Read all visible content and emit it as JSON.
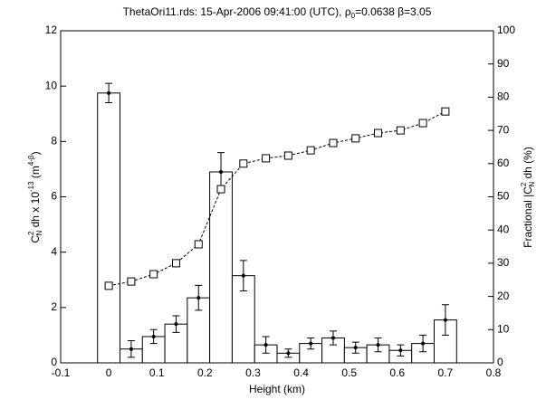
{
  "chart_data": {
    "type": "bar",
    "title": [
      "ThetaOri11.rds: 15-Apr-2006 09:41:00 (UTC), ρ",
      "0",
      "=0.0638 β=3.05"
    ],
    "x_label": "Height (km)",
    "y_label": [
      "C",
      "2",
      "N",
      " dh x 10",
      "-13",
      " (m",
      "4-β",
      ")"
    ],
    "y2_label": [
      "Fractional |C",
      "2",
      "N",
      " dh  (%)"
    ],
    "x": [
      0,
      0.0467,
      0.0933,
      0.14,
      0.1867,
      0.2333,
      0.28,
      0.3267,
      0.3733,
      0.42,
      0.4667,
      0.5133,
      0.56,
      0.6067,
      0.6533,
      0.7
    ],
    "series": [
      {
        "type": "bar",
        "color": "#000000",
        "values": [
          9.75,
          0.5,
          0.95,
          1.4,
          2.35,
          6.9,
          3.15,
          0.65,
          0.35,
          0.7,
          0.9,
          0.55,
          0.65,
          0.45,
          0.7,
          1.55
        ],
        "errors": [
          0.35,
          0.3,
          0.25,
          0.3,
          0.45,
          0.7,
          0.55,
          0.3,
          0.15,
          0.2,
          0.25,
          0.2,
          0.25,
          0.2,
          0.3,
          0.55
        ]
      },
      {
        "type": "line",
        "axis": "y2",
        "color": "#000000",
        "values": [
          23.2,
          24.5,
          26.7,
          30,
          35.7,
          52.3,
          60,
          61.6,
          62.4,
          64,
          66.2,
          67.6,
          69.2,
          70,
          72.2,
          75.7
        ]
      }
    ],
    "xlim": [
      -0.1,
      0.8
    ],
    "xticks": [
      -0.1,
      0,
      0.1,
      0.2,
      0.3,
      0.4,
      0.5,
      0.6,
      0.7,
      0.8
    ],
    "ylim": [
      0,
      12
    ],
    "yticks": [
      0,
      2,
      4,
      6,
      8,
      10,
      12
    ],
    "y2lim": [
      0,
      100
    ],
    "y2ticks": [
      0,
      10,
      20,
      30,
      40,
      50,
      60,
      70,
      80,
      90,
      100
    ]
  }
}
